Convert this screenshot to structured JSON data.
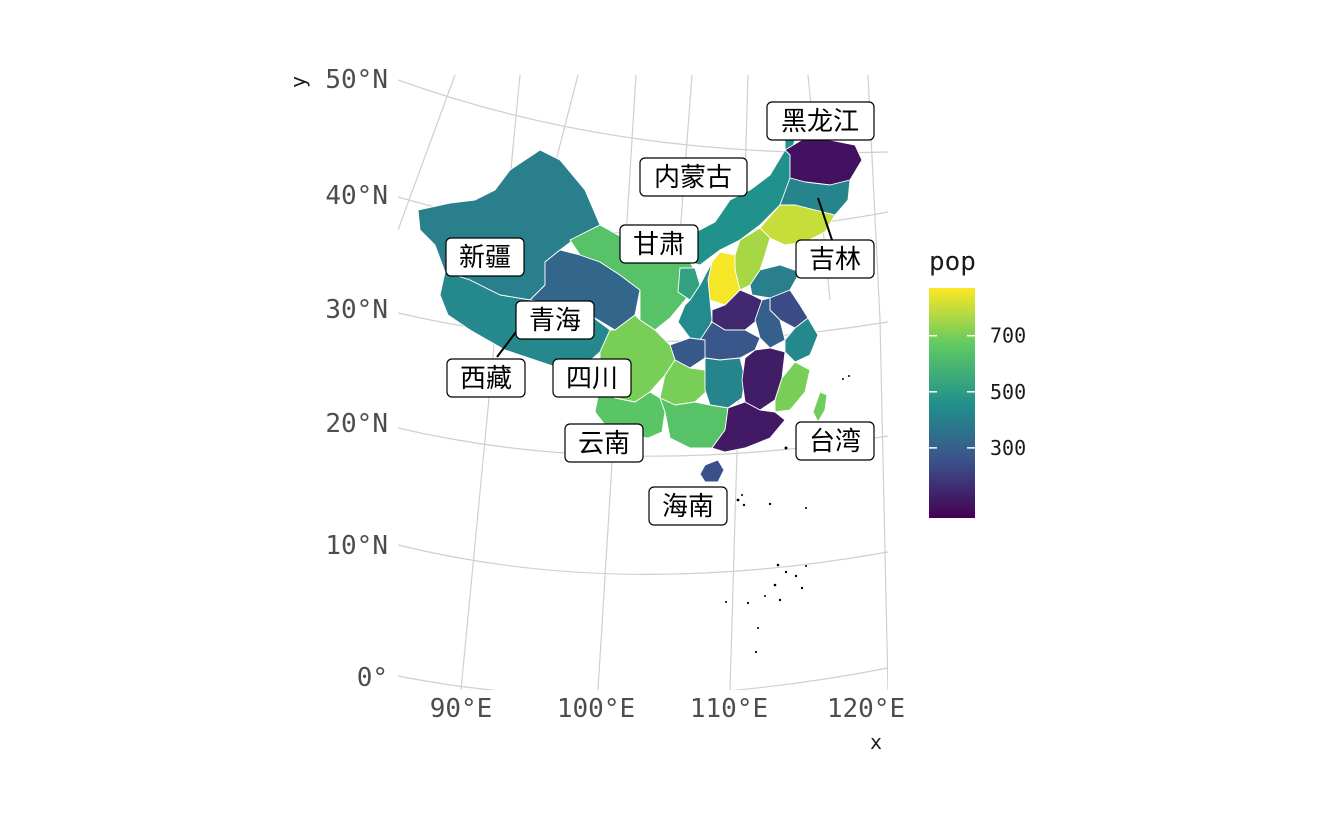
{
  "map": {
    "axis_x_title": "x",
    "axis_y_title": "y",
    "lon_ticks": [
      "90°E",
      "100°E",
      "110°E",
      "120°E"
    ],
    "lat_ticks": [
      "50°N",
      "40°N",
      "30°N",
      "20°N",
      "10°N",
      "0°"
    ]
  },
  "legend": {
    "title": "pop",
    "ticks": [
      "700",
      "500",
      "300"
    ],
    "tick_values": [
      700,
      500,
      300
    ],
    "range": [
      50,
      870
    ],
    "colors": [
      "#440154",
      "#3b528b",
      "#21918c",
      "#5ec962",
      "#fde725"
    ]
  },
  "labels": [
    {
      "name": "黑龙江"
    },
    {
      "name": "内蒙古"
    },
    {
      "name": "甘肃"
    },
    {
      "name": "新疆"
    },
    {
      "name": "吉林"
    },
    {
      "name": "青海"
    },
    {
      "name": "西藏"
    },
    {
      "name": "四川"
    },
    {
      "name": "云南"
    },
    {
      "name": "台湾"
    },
    {
      "name": "海南"
    }
  ],
  "provinces": [
    {
      "id": "xinjiang",
      "pop": 400
    },
    {
      "id": "xizang",
      "pop": 430
    },
    {
      "id": "qinghai",
      "pop": 320
    },
    {
      "id": "gansu",
      "pop": 640
    },
    {
      "id": "neimenggu",
      "pop": 460
    },
    {
      "id": "heilongjiang",
      "pop": 90
    },
    {
      "id": "jilin",
      "pop": 420
    },
    {
      "id": "liaoning",
      "pop": 800
    },
    {
      "id": "sichuan",
      "pop": 700
    },
    {
      "id": "yunnan",
      "pop": 650
    },
    {
      "id": "shanxi",
      "pop": 860
    },
    {
      "id": "henan",
      "pop": 150
    },
    {
      "id": "hubei",
      "pop": 270
    },
    {
      "id": "hunan",
      "pop": 420
    },
    {
      "id": "jiangxi",
      "pop": 120
    },
    {
      "id": "guangdong",
      "pop": 110
    },
    {
      "id": "guangxi",
      "pop": 640
    },
    {
      "id": "guizhou",
      "pop": 700
    },
    {
      "id": "chongqing",
      "pop": 280
    },
    {
      "id": "shaanxi",
      "pop": 440
    },
    {
      "id": "ningxia",
      "pop": 520
    },
    {
      "id": "hebei",
      "pop": 760
    },
    {
      "id": "shandong",
      "pop": 400
    },
    {
      "id": "anhui",
      "pop": 300
    },
    {
      "id": "jiangsu",
      "pop": 240
    },
    {
      "id": "zhejiang",
      "pop": 430
    },
    {
      "id": "fujian",
      "pop": 700
    },
    {
      "id": "taiwan",
      "pop": 690
    },
    {
      "id": "hainan",
      "pop": 250
    }
  ]
}
